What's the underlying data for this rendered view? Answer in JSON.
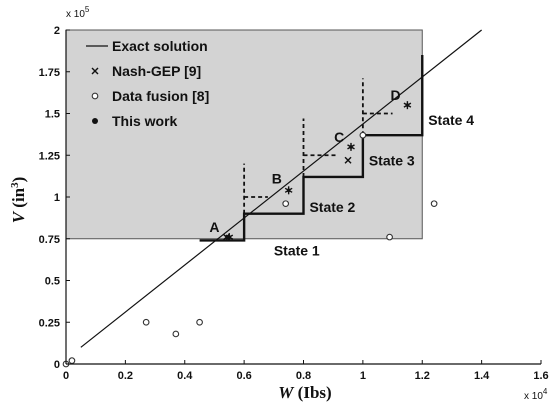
{
  "chart_data": {
    "type": "scatter",
    "xlabel_var": "W",
    "xlabel_unit": " (Ibs)",
    "ylabel_var": "V",
    "ylabel_unit": " (in",
    "ylabel_unit_sup": "3",
    "ylabel_unit_close": ")",
    "x_multiplier": "x 10",
    "x_multiplier_exp": "4",
    "y_multiplier": "x 10",
    "y_multiplier_exp": "5",
    "xlim": [
      0,
      1.6
    ],
    "ylim": [
      0,
      2
    ],
    "xticks": [
      0,
      0.2,
      0.4,
      0.6,
      0.8,
      1,
      1.2,
      1.4,
      1.6
    ],
    "xtick_labels": [
      "0",
      "0.2",
      "0.4",
      "0.6",
      "0.8",
      "1",
      "1.2",
      "1.4",
      "1.6"
    ],
    "yticks": [
      0,
      0.25,
      0.5,
      0.75,
      1,
      1.25,
      1.5,
      1.75,
      2
    ],
    "ytick_labels": [
      "0",
      "0.25",
      "0.5",
      "0.75",
      "1",
      "1.25",
      "1.5",
      "1.75",
      "2"
    ],
    "feasible_region": {
      "x": [
        0,
        1.2
      ],
      "y": [
        0.75,
        2
      ],
      "color": "#d3d3d3"
    },
    "exact_solution": {
      "name": "Exact solution",
      "x": [
        0.05,
        1.4
      ],
      "y": [
        0.1,
        2.0
      ]
    },
    "series": [
      {
        "name": "Nash-GEP [9]",
        "marker": "x",
        "x": [
          0.54,
          0.95
        ],
        "y": [
          0.76,
          1.22
        ]
      },
      {
        "name": "Data fusion [8]",
        "marker": "circle-open",
        "x": [
          0.0,
          0.02,
          0.27,
          0.37,
          0.45,
          0.74,
          1.0,
          1.09,
          1.24
        ],
        "y": [
          0.0,
          0.02,
          0.25,
          0.18,
          0.25,
          0.96,
          1.37,
          0.76,
          0.96
        ]
      },
      {
        "name": "This work",
        "marker": "asterisk",
        "x": [
          0.55,
          0.75,
          0.96,
          1.15
        ],
        "y": [
          0.76,
          1.04,
          1.3,
          1.55
        ]
      }
    ],
    "states": [
      {
        "label": "State 1",
        "dx": [
          0.6,
          0.6
        ],
        "dy": [
          0.75,
          1.0
        ],
        "hx": [
          0.6,
          0.67
        ],
        "hy": [
          1.0,
          1.0
        ],
        "sx": [
          0.4,
          0.6,
          0.6,
          0.8,
          0.8
        ],
        "sy": [
          0.74,
          0.74,
          0.9,
          0.9,
          1.0
        ],
        "label_x": 0.7,
        "label_y": 0.65
      },
      {
        "label": "State 2",
        "dx": [
          0.8,
          0.8
        ],
        "dy": [
          1.0,
          1.25
        ],
        "hx": [
          0.71,
          0.8
        ],
        "hy": [
          1.25,
          1.25
        ],
        "sx": [
          0.8,
          0.8,
          0.8
        ],
        "sy": [
          1.0,
          1.0,
          1.0
        ],
        "label_x": 0.82,
        "label_y": 0.91
      },
      {
        "label": "State 3",
        "dx": [
          1.0,
          1.0
        ],
        "dy": [
          1.25,
          1.5
        ],
        "hx": [
          0.92,
          1.0
        ],
        "hy": [
          1.5,
          1.5
        ],
        "sx": [
          0.8,
          0.8,
          1.0,
          1.0,
          1.0
        ],
        "sy": [
          1.0,
          1.25,
          1.25,
          1.37,
          1.5
        ],
        "label_x": 1.02,
        "label_y": 1.19
      },
      {
        "label": "State 4",
        "dx": [
          1.2,
          1.2
        ],
        "dy": [
          1.5,
          1.85
        ],
        "hx": [
          1.13,
          1.2
        ],
        "hy": [
          1.85,
          1.85
        ],
        "sx": [
          1.0,
          1.0,
          1.2,
          1.2
        ],
        "sy": [
          1.37,
          1.49,
          1.49,
          1.85
        ],
        "label_x": 1.22,
        "label_y": 1.43
      }
    ],
    "step_points": {
      "x": [
        0.45,
        0.6,
        0.6,
        0.8,
        0.8,
        1.0,
        1.0,
        1.2,
        1.2
      ],
      "y": [
        0.74,
        0.74,
        0.9,
        0.9,
        1.12,
        1.12,
        1.37,
        1.37,
        1.85
      ]
    },
    "dashed_v": [
      {
        "x": 0.6,
        "y": [
          0.9,
          1.2
        ]
      },
      {
        "x": 0.8,
        "y": [
          1.12,
          1.47
        ]
      },
      {
        "x": 1.0,
        "y": [
          1.37,
          1.71
        ]
      }
    ],
    "dashed_h": [
      {
        "y": 1.0,
        "x": [
          0.6,
          0.68
        ]
      },
      {
        "y": 1.25,
        "x": [
          0.8,
          0.91
        ]
      },
      {
        "y": 1.5,
        "x": [
          1.0,
          1.1
        ]
      }
    ],
    "point_labels": [
      {
        "text": "A",
        "x": 0.5,
        "y": 0.79
      },
      {
        "text": "B",
        "x": 0.71,
        "y": 1.08
      },
      {
        "text": "C",
        "x": 0.92,
        "y": 1.33
      },
      {
        "text": "D",
        "x": 1.11,
        "y": 1.58
      }
    ],
    "grid": false,
    "legend_position": "top-left"
  }
}
